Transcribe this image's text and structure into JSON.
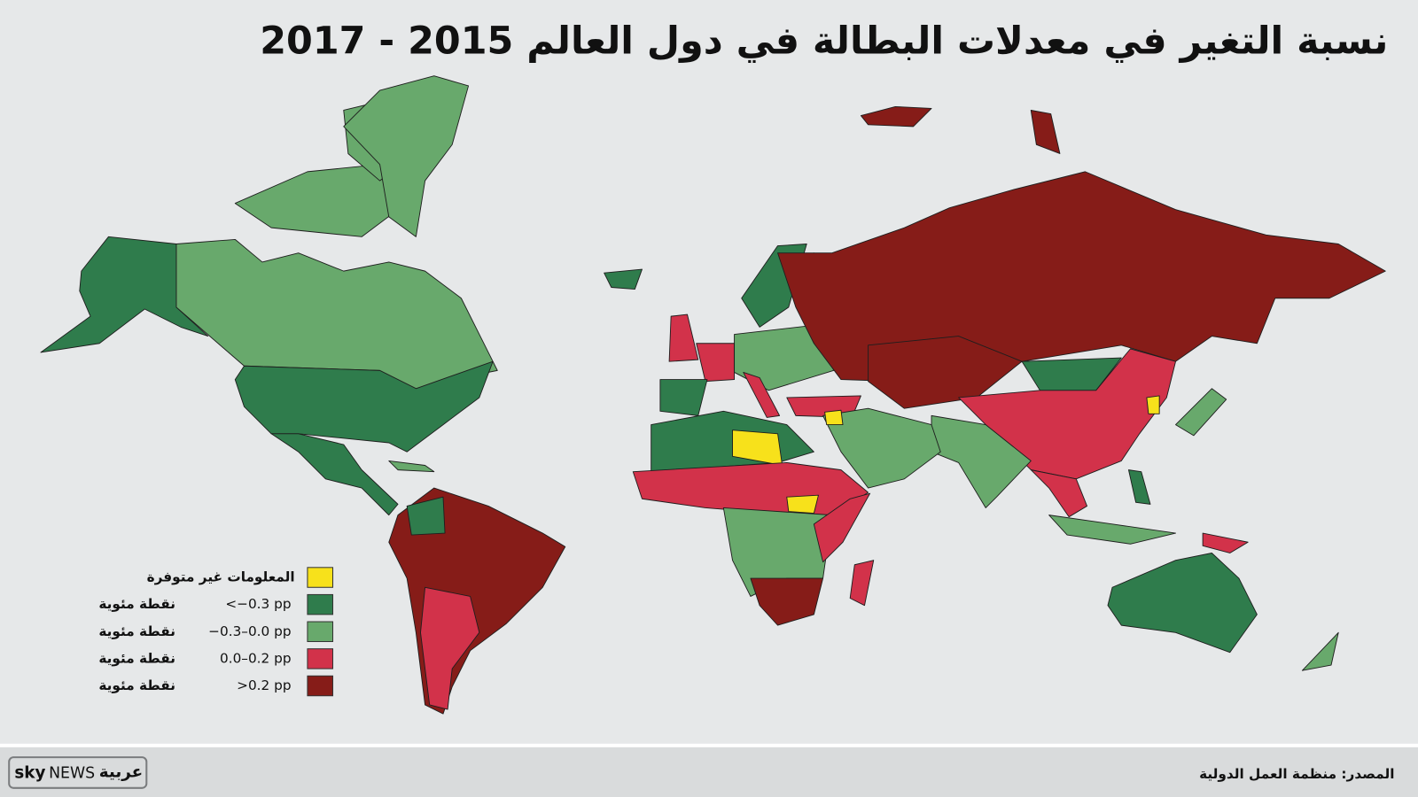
{
  "title": "نسبة التغير في معدلات البطالة في دول العالم 2015 - 2017",
  "legend": [
    {
      "label": "المعلومات غير متوفرة",
      "color": "#f7e11b"
    },
    {
      "range": "<−0.3 pp",
      "unit": "نقطة مئوية",
      "color": "#2f7c4c"
    },
    {
      "range": "−0.3–0.0 pp",
      "unit": "نقطة مئوية",
      "color": "#68a96c"
    },
    {
      "range": "0.0–0.2 pp",
      "unit": "نقطة مئوية",
      "color": "#d2324a"
    },
    {
      "range": ">0.2 pp",
      "unit": "نقطة مئوية",
      "color": "#861c18"
    }
  ],
  "source": "المصدر: منظمة العمل الدولية",
  "logo": {
    "sky": "sky",
    "news": "NEWS",
    "arabic": "عربية"
  }
}
